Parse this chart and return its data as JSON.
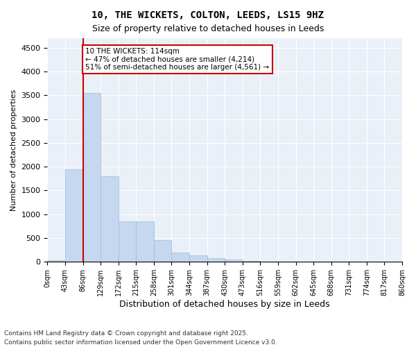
{
  "title1": "10, THE WICKETS, COLTON, LEEDS, LS15 9HZ",
  "title2": "Size of property relative to detached houses in Leeds",
  "xlabel": "Distribution of detached houses by size in Leeds",
  "ylabel": "Number of detached properties",
  "bar_color": "#c5d8f0",
  "bar_edge_color": "#a0b8d8",
  "bin_labels": [
    "0sqm",
    "43sqm",
    "86sqm",
    "129sqm",
    "172sqm",
    "215sqm",
    "258sqm",
    "301sqm",
    "344sqm",
    "387sqm",
    "430sqm",
    "473sqm",
    "516sqm",
    "559sqm",
    "602sqm",
    "645sqm",
    "688sqm",
    "731sqm",
    "774sqm",
    "817sqm",
    "860sqm"
  ],
  "bar_values": [
    30,
    1950,
    3550,
    1800,
    850,
    850,
    450,
    200,
    130,
    80,
    50,
    20,
    10,
    5,
    3,
    2,
    1,
    1,
    0,
    0
  ],
  "vline_x": 2,
  "vline_color": "#cc0000",
  "annotation_text": "10 THE WICKETS: 114sqm\n← 47% of detached houses are smaller (4,214)\n51% of semi-detached houses are larger (4,561) →",
  "annotation_box_color": "#ffffff",
  "annotation_box_edge_color": "#cc0000",
  "ylim": [
    0,
    4700
  ],
  "yticks": [
    0,
    500,
    1000,
    1500,
    2000,
    2500,
    3000,
    3500,
    4000,
    4500
  ],
  "background_color": "#eaf0f8",
  "footnote1": "Contains HM Land Registry data © Crown copyright and database right 2025.",
  "footnote2": "Contains public sector information licensed under the Open Government Licence v3.0."
}
